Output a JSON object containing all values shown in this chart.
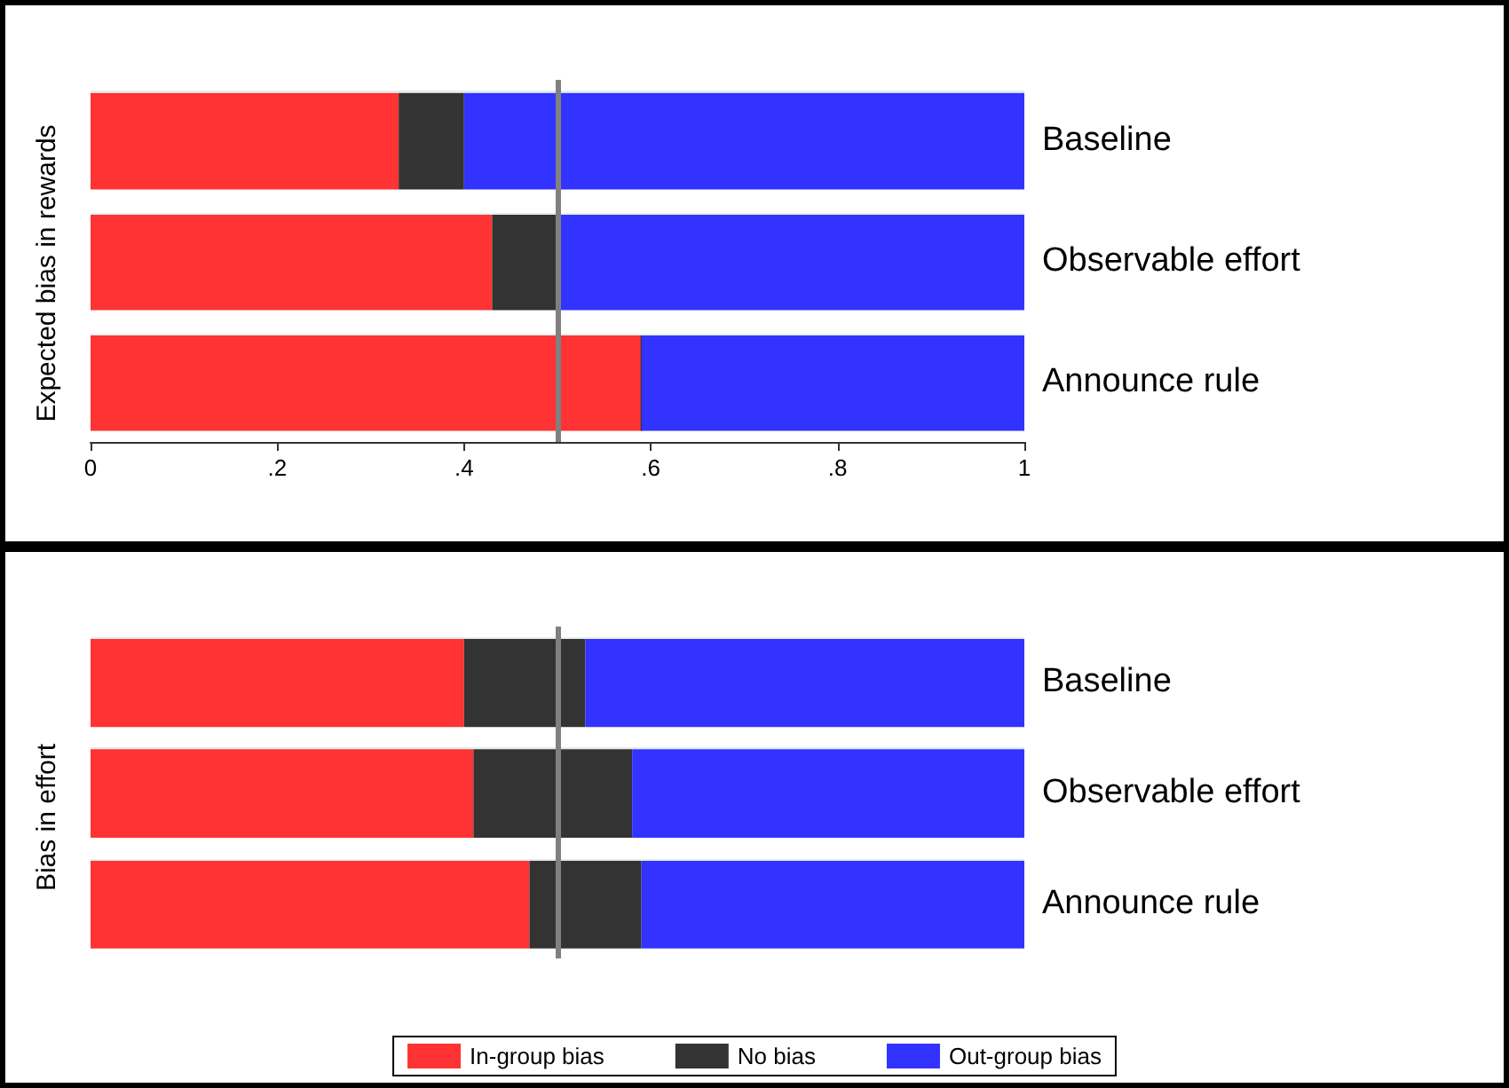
{
  "chart_data": [
    {
      "type": "bar",
      "orientation": "horizontal",
      "stacked": true,
      "ylabel": "Expected bias in rewards",
      "categories": [
        "Baseline",
        "Observable effort",
        "Announce rule"
      ],
      "series": [
        {
          "color": "#ff3333",
          "values": [
            0.33,
            0.43,
            0.59
          ]
        },
        {
          "color": "#333333",
          "values": [
            0.07,
            0.07,
            0
          ]
        },
        {
          "color": "#3333ff",
          "values": [
            0.6,
            0.5,
            0.41
          ]
        }
      ],
      "xlim": [
        0,
        1
      ],
      "xticks": [
        0,
        {
          "value": 0.2,
          "label": ".2"
        },
        {
          "value": 0.4,
          "label": ".4"
        },
        {
          "value": 0.6,
          "label": ".6"
        },
        {
          "value": 0.8,
          "label": ".8"
        },
        1
      ],
      "ref_lines": [
        {
          "axis": "x",
          "value": 0.5,
          "color": "#808080"
        }
      ],
      "grid": "y",
      "legend": false
    },
    {
      "type": "bar",
      "orientation": "horizontal",
      "stacked": true,
      "ylabel": "Bias in effort",
      "categories": [
        "Baseline",
        "Observable effort",
        "Announce rule"
      ],
      "series": [
        {
          "name": "In-group bias",
          "color": "#ff3333",
          "values": [
            0.4,
            0.41,
            0.47
          ]
        },
        {
          "name": "No bias",
          "color": "#333333",
          "values": [
            0.13,
            0.17,
            0.12
          ]
        },
        {
          "name": "Out-group bias",
          "color": "#3333ff",
          "values": [
            0.47,
            0.42,
            0.41
          ]
        }
      ],
      "xlim": [
        0,
        1
      ],
      "tick_labels": "y",
      "ref_lines": [
        {
          "axis": "x",
          "value": 0.5,
          "color": "#808080"
        }
      ],
      "grid": "y",
      "legend": "bottom"
    }
  ]
}
